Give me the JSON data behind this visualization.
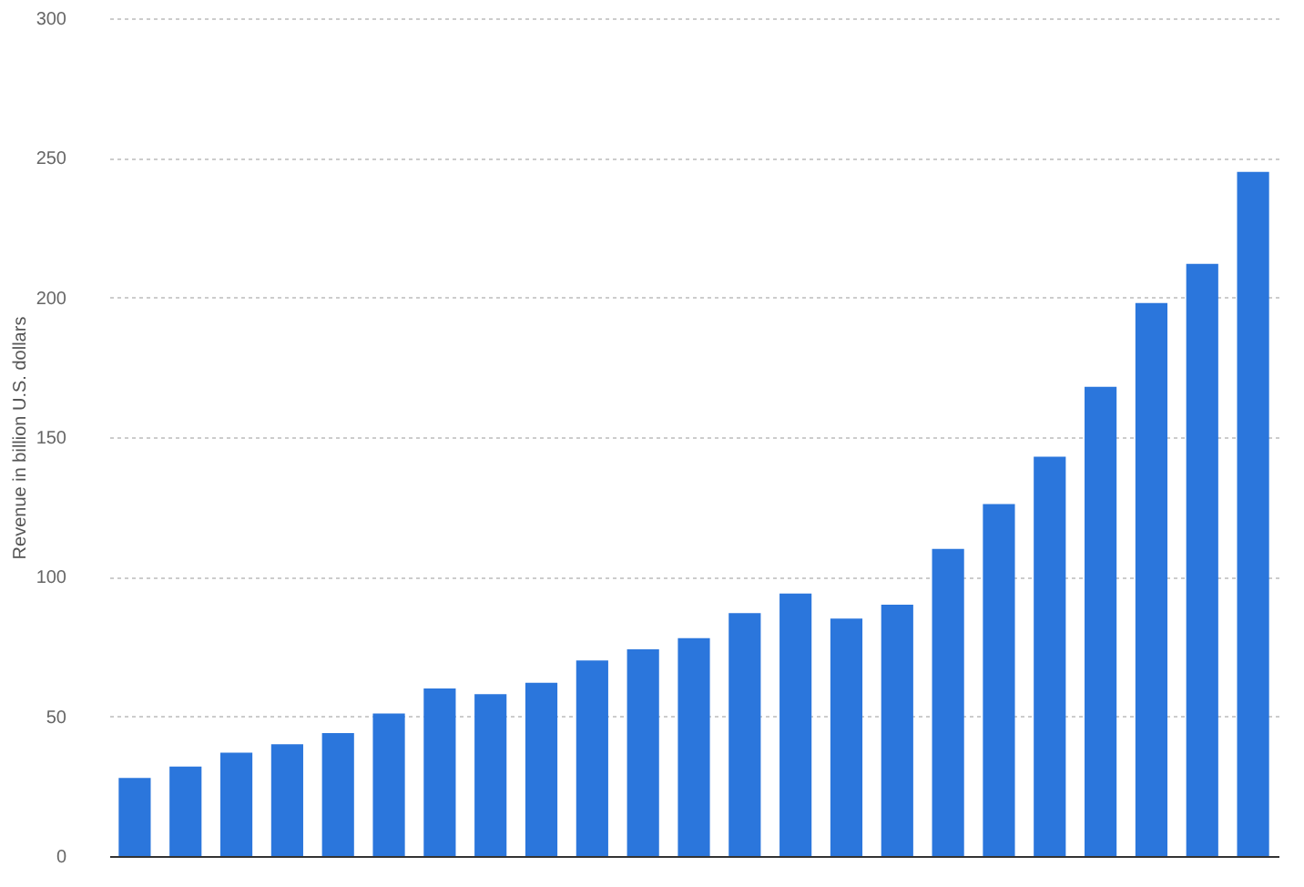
{
  "chart_data": {
    "type": "bar",
    "ylabel": "Revenue in billion U.S. dollars",
    "categories": [
      null,
      null,
      null,
      null,
      null,
      null,
      null,
      null,
      null,
      null,
      null,
      null,
      null,
      null,
      null,
      null,
      null,
      null,
      null,
      null,
      null,
      null,
      null
    ],
    "values": [
      28,
      32,
      37,
      40,
      44,
      51,
      60,
      58,
      62,
      70,
      74,
      78,
      87,
      94,
      85,
      90,
      110,
      126,
      143,
      168,
      198,
      212,
      245
    ],
    "color": "#2b76dc",
    "ylim": [
      0,
      300
    ],
    "yticks": [
      0,
      50,
      100,
      150,
      200,
      250,
      300
    ],
    "grid": "y",
    "tick_labels": "y"
  }
}
